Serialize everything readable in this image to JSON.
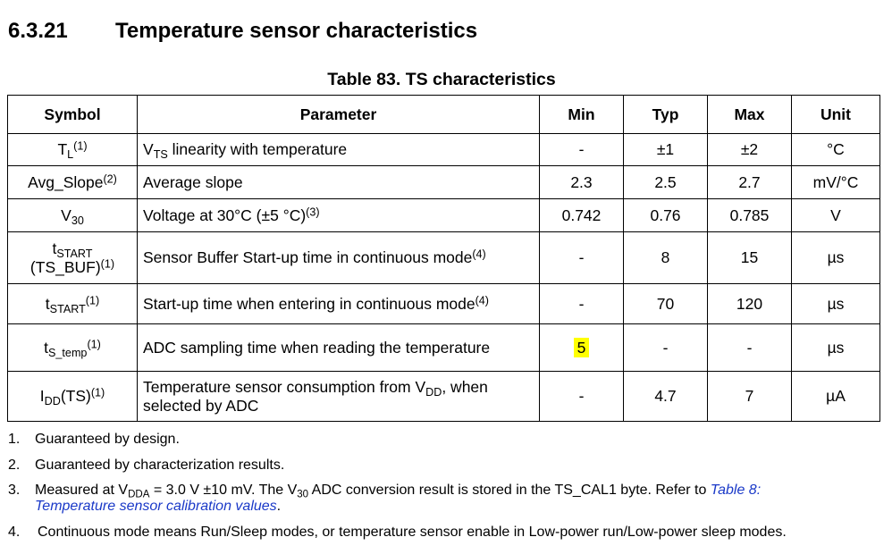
{
  "section": {
    "number": "6.3.21",
    "title": "Temperature sensor characteristics"
  },
  "table": {
    "caption": "Table 83. TS characteristics",
    "headers": [
      "Symbol",
      "Parameter",
      "Min",
      "Typ",
      "Max",
      "Unit"
    ],
    "rows": [
      {
        "symbol": {
          "base": "T",
          "sub": "L",
          "sup": "(1)"
        },
        "parameter": {
          "prefix": "V",
          "sub": "TS",
          "text": " linearity with temperature",
          "sup": ""
        },
        "min": "-",
        "typ": "±1",
        "max": "±2",
        "unit": "°C"
      },
      {
        "symbol": {
          "base": "Avg_Slope",
          "sub": "",
          "sup": "(2)"
        },
        "parameter": {
          "text": "Average slope",
          "sup": ""
        },
        "min": "2.3",
        "typ": "2.5",
        "max": "2.7",
        "unit": "mV/°C"
      },
      {
        "symbol": {
          "base": "V",
          "sub": "30",
          "sup": ""
        },
        "parameter": {
          "text": "Voltage at 30°C (±5 °C)",
          "sup": "(3)"
        },
        "min": "0.742",
        "typ": "0.76",
        "max": "0.785",
        "unit": "V"
      },
      {
        "symbol": {
          "base": "t",
          "sub": "START",
          "line2": "(TS_BUF)",
          "sup": "(1)"
        },
        "parameter": {
          "text": "Sensor Buffer Start-up time in continuous mode",
          "sup": "(4)"
        },
        "min": "-",
        "typ": "8",
        "max": "15",
        "unit": "µs"
      },
      {
        "symbol": {
          "base": "t",
          "sub": "START",
          "sup": "(1)"
        },
        "parameter": {
          "text": "Start-up time when entering in continuous mode",
          "sup": "(4)"
        },
        "min": "-",
        "typ": "70",
        "max": "120",
        "unit": "µs"
      },
      {
        "symbol": {
          "base": "t",
          "sub": "S_temp",
          "sup": "(1)"
        },
        "parameter": {
          "text": "ADC sampling time when reading the temperature",
          "sup": ""
        },
        "min": "5",
        "typ": "-",
        "max": "-",
        "unit": "µs",
        "min_highlight_color": "#ffff00"
      },
      {
        "symbol": {
          "base": "I",
          "sub": "DD",
          "after": "(TS)",
          "sup": "(1)"
        },
        "parameter": {
          "text": "Temperature sensor consumption from V",
          "sub": "DD",
          "text2": ", when",
          "line2": "selected by ADC"
        },
        "min": "-",
        "typ": "4.7",
        "max": "7",
        "unit": "µA"
      }
    ]
  },
  "notes": [
    {
      "num": "1.",
      "text": "Guaranteed by design."
    },
    {
      "num": "2.",
      "text": "Guaranteed by characterization results."
    },
    {
      "num": "3.",
      "text_a": "Measured at V",
      "sub_a": "DDA",
      "text_b": " = 3.0 V ±10 mV. The V",
      "sub_b": "30",
      "text_c": " ADC conversion result is stored in the TS_CAL1 byte. Refer to ",
      "link": "Table 8:",
      "link2": "Temperature sensor calibration values",
      "text_d": "."
    },
    {
      "num": "4.",
      "text": "Continuous mode means Run/Sleep modes, or temperature sensor enable in Low-power run/Low-power sleep modes."
    }
  ],
  "colors": {
    "highlight": "#ffff00",
    "link": "#1a39c8"
  }
}
